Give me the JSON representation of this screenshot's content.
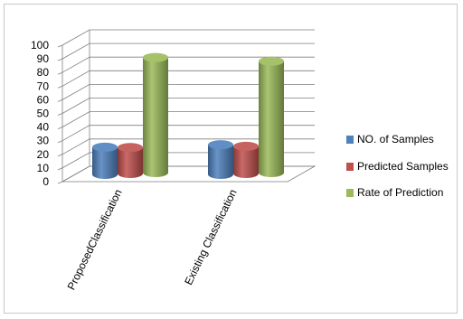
{
  "chart_data": {
    "type": "bar",
    "categories": [
      "ProposedClassification",
      "Existing Classification"
    ],
    "series": [
      {
        "name": "NO. of Samples",
        "values": [
          22,
          24
        ],
        "color": "#4f81bd"
      },
      {
        "name": "Predicted Samples",
        "values": [
          21,
          22
        ],
        "color": "#c0504d"
      },
      {
        "name": "Rate of Prediction",
        "values": [
          93,
          90
        ],
        "color": "#9bbb59"
      }
    ],
    "ylim": [
      0,
      100
    ],
    "yticks": [
      0,
      10,
      20,
      30,
      40,
      50,
      60,
      70,
      80,
      90,
      100
    ],
    "grid": true,
    "legend_position": "right",
    "style": "3d cylinder"
  }
}
